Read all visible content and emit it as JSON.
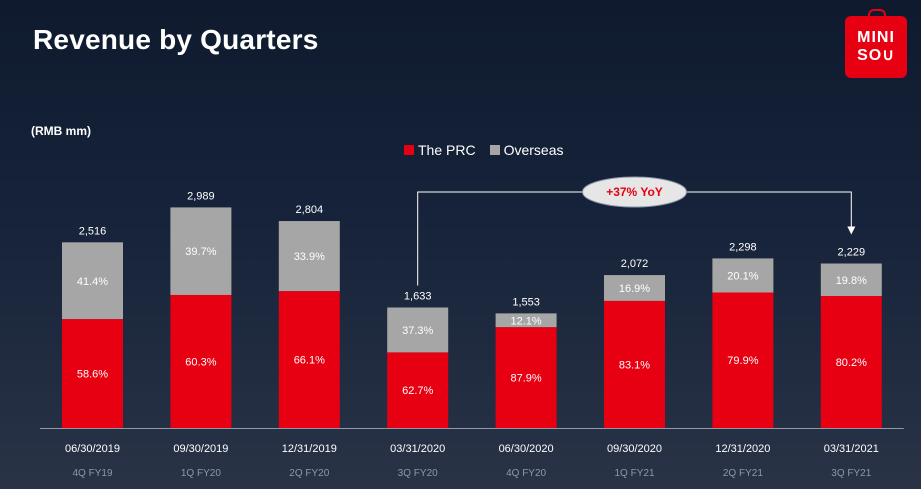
{
  "header": {
    "title": "Revenue by Quarters",
    "logo_line1": "MINI",
    "logo_line2": "SO∪"
  },
  "unit_label": "(RMB mm)",
  "legend": {
    "prc_label": "The PRC",
    "overseas_label": "Overseas"
  },
  "colors": {
    "prc": "#e60012",
    "overseas": "#a6a6a6",
    "brand": "#e60012"
  },
  "chart_data": {
    "type": "bar",
    "stacked": true,
    "title": "Revenue by Quarters",
    "unit": "(RMB mm)",
    "categories": [
      "06/30/2019",
      "09/30/2019",
      "12/31/2019",
      "03/31/2020",
      "06/30/2020",
      "09/30/2020",
      "12/31/2020",
      "03/31/2021"
    ],
    "fiscal_labels": [
      "4Q FY19",
      "1Q FY20",
      "2Q FY20",
      "3Q FY20",
      "4Q FY20",
      "1Q FY21",
      "2Q FY21",
      "3Q FY21"
    ],
    "totals": [
      2516,
      2989,
      2804,
      1633,
      1553,
      2072,
      2298,
      2229
    ],
    "total_labels": [
      "2,516",
      "2,989",
      "2,804",
      "1,633",
      "1,553",
      "2,072",
      "2,298",
      "2,229"
    ],
    "series": [
      {
        "name": "The PRC",
        "share_pct": [
          58.6,
          60.3,
          66.1,
          62.7,
          87.9,
          83.1,
          79.9,
          80.2
        ],
        "share_labels": [
          "58.6%",
          "60.3%",
          "66.1%",
          "62.7%",
          "87.9%",
          "83.1%",
          "79.9%",
          "80.2%"
        ]
      },
      {
        "name": "Overseas",
        "share_pct": [
          41.4,
          39.7,
          33.9,
          37.3,
          12.1,
          16.9,
          20.1,
          19.8
        ],
        "share_labels": [
          "41.4%",
          "39.7%",
          "33.9%",
          "37.3%",
          "12.1%",
          "16.9%",
          "20.1%",
          "19.8%"
        ]
      }
    ],
    "annotation": {
      "text": "+37% YoY",
      "from_index": 3,
      "to_index": 7
    },
    "legend_position": "top-center",
    "grid": false
  }
}
